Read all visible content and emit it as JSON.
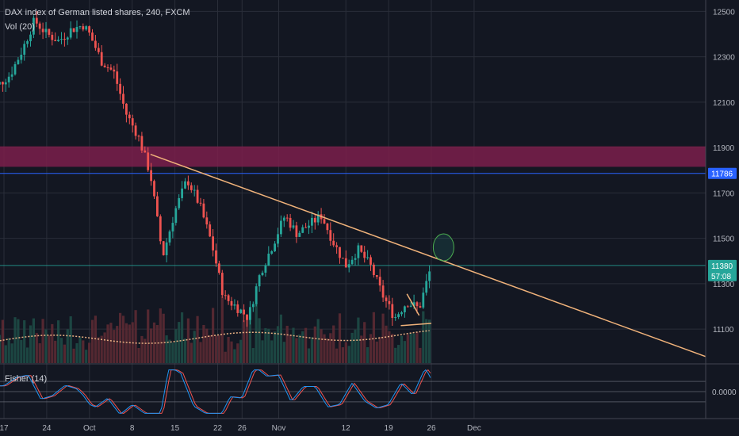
{
  "header": {
    "title": "DAX index of German listed shares, 240, FXCM",
    "volume_label": "Vol (20)",
    "fisher_label": "Fisher (14)"
  },
  "colors": {
    "background": "#131722",
    "up": "#26a69a",
    "down": "#ef5350",
    "trendline": "#f0b27a",
    "zone": "#7b1e4b",
    "resistance_line": "#2962ff",
    "price_line": "#26a69a",
    "fisher": "#2196f3",
    "trigger": "#ef5350",
    "volume_ma": "#e8b083"
  },
  "chart_data": {
    "type": "candlestick",
    "title": "DAX index of German listed shares, 240, FXCM",
    "ylim": [
      10950,
      12550
    ],
    "y_ticks": [
      12500,
      12300,
      12100,
      11900,
      11700,
      11500,
      11300,
      11100
    ],
    "x_ticks": [
      "17",
      "24",
      "Oct",
      "8",
      "15",
      "22",
      "26",
      "Nov",
      "12",
      "19",
      "26",
      "Dec"
    ],
    "price_tags": [
      {
        "label": "11786",
        "value": 11786,
        "color": "#2962ff"
      },
      {
        "label": "11380",
        "value": 11380,
        "color": "#26a69a"
      },
      {
        "label": "57:08",
        "value": 11335,
        "color": "#26a69a"
      }
    ],
    "resistance_zone": [
      11815,
      11905
    ],
    "resistance_line": 11786,
    "price_line": 11380,
    "trendline": [
      {
        "date": "Oct 11",
        "price": 11870
      },
      {
        "date": "Nov 30",
        "price": 11380
      }
    ],
    "triangle": {
      "upper": [
        {
          "date": "Nov 22",
          "price": 11255
        },
        {
          "date": "Nov 24",
          "price": 11160
        }
      ],
      "lower": [
        {
          "date": "Nov 21",
          "price": 11115
        },
        {
          "date": "Nov 26",
          "price": 11125
        }
      ]
    },
    "target_circle": {
      "date": "Nov 28",
      "price": 11460
    },
    "close_path": [
      [
        "Sep 14",
        12130
      ],
      [
        "Sep 18",
        12220
      ],
      [
        "Sep 20",
        12330
      ],
      [
        "Sep 22",
        12460
      ],
      [
        "Sep 24",
        12400
      ],
      [
        "Sep 26",
        12370
      ],
      [
        "Sep 28",
        12420
      ],
      [
        "Sep 30",
        12440
      ],
      [
        "Oct 1",
        12400
      ],
      [
        "Oct 3",
        12280
      ],
      [
        "Oct 5",
        12230
      ],
      [
        "Oct 7",
        12050
      ],
      [
        "Oct 9",
        11950
      ],
      [
        "Oct 11",
        11780
      ],
      [
        "Oct 13",
        11420
      ],
      [
        "Oct 15",
        11620
      ],
      [
        "Oct 17",
        11760
      ],
      [
        "Oct 19",
        11650
      ],
      [
        "Oct 21",
        11480
      ],
      [
        "Oct 23",
        11240
      ],
      [
        "Oct 25",
        11200
      ],
      [
        "Oct 27",
        11150
      ],
      [
        "Oct 29",
        11350
      ],
      [
        "Oct 31",
        11470
      ],
      [
        "Nov 2",
        11600
      ],
      [
        "Nov 4",
        11520
      ],
      [
        "Nov 6",
        11560
      ],
      [
        "Nov 8",
        11600
      ],
      [
        "Nov 10",
        11480
      ],
      [
        "Nov 12",
        11380
      ],
      [
        "Nov 14",
        11450
      ],
      [
        "Nov 16",
        11380
      ],
      [
        "Nov 18",
        11250
      ],
      [
        "Nov 20",
        11150
      ],
      [
        "Nov 22",
        11220
      ],
      [
        "Nov 24",
        11190
      ],
      [
        "Nov 26",
        11380
      ]
    ],
    "volume_scale": [
      0,
      1
    ],
    "fisher_zero_label": "0.0000",
    "fisher_ylim": [
      -3.5,
      3.5
    ]
  }
}
